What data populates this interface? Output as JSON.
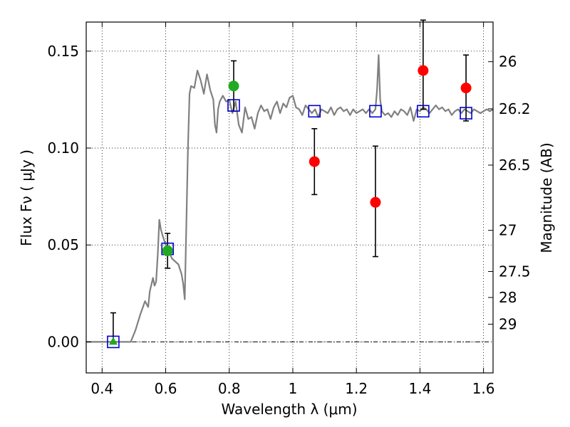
{
  "chart_data": {
    "type": "scatter",
    "xlabel": "Wavelength  λ (μm)",
    "ylabel": "Flux  Fν  ( μJy )",
    "y2label": "Magnitude (AB)",
    "xlim": [
      0.35,
      1.63
    ],
    "ylim": [
      -0.016,
      0.165
    ],
    "x_ticks": [
      0.4,
      0.6,
      0.8,
      1.0,
      1.2,
      1.4,
      1.6
    ],
    "x_tick_labels": [
      "0.4",
      "0.6",
      "0.8",
      "1",
      "1.2",
      "1.4",
      "1.6"
    ],
    "y_ticks": [
      0.0,
      0.05,
      0.1,
      0.15
    ],
    "y_tick_labels": [
      "0.00",
      "0.05",
      "0.10",
      "0.15"
    ],
    "mag_ticks": [
      26,
      26.2,
      26.5,
      27,
      27.5,
      28,
      29
    ],
    "mag_tick_labels": [
      "26",
      "26.2",
      "26.5",
      "27",
      "27.5",
      "28",
      "29"
    ],
    "grid": true,
    "zero_line": true,
    "colors": {
      "model": "#808080",
      "model_photometry": "#0000cc",
      "detection": "#22aa22",
      "high_z": "#ff0000",
      "errorbar": "#000000"
    },
    "model_spectrum": [
      [
        0.35,
        0.0
      ],
      [
        0.49,
        0.0
      ],
      [
        0.505,
        0.006
      ],
      [
        0.52,
        0.014
      ],
      [
        0.535,
        0.021
      ],
      [
        0.545,
        0.018
      ],
      [
        0.55,
        0.026
      ],
      [
        0.56,
        0.033
      ],
      [
        0.565,
        0.029
      ],
      [
        0.57,
        0.031
      ],
      [
        0.575,
        0.045
      ],
      [
        0.58,
        0.063
      ],
      [
        0.585,
        0.058
      ],
      [
        0.59,
        0.055
      ],
      [
        0.6,
        0.05
      ],
      [
        0.62,
        0.043
      ],
      [
        0.64,
        0.04
      ],
      [
        0.65,
        0.035
      ],
      [
        0.655,
        0.03
      ],
      [
        0.66,
        0.022
      ],
      [
        0.665,
        0.06
      ],
      [
        0.67,
        0.1
      ],
      [
        0.675,
        0.128
      ],
      [
        0.68,
        0.132
      ],
      [
        0.69,
        0.131
      ],
      [
        0.7,
        0.14
      ],
      [
        0.71,
        0.135
      ],
      [
        0.72,
        0.128
      ],
      [
        0.73,
        0.138
      ],
      [
        0.74,
        0.13
      ],
      [
        0.75,
        0.125
      ],
      [
        0.755,
        0.112
      ],
      [
        0.76,
        0.108
      ],
      [
        0.765,
        0.12
      ],
      [
        0.77,
        0.124
      ],
      [
        0.78,
        0.127
      ],
      [
        0.79,
        0.124
      ],
      [
        0.8,
        0.125
      ],
      [
        0.81,
        0.118
      ],
      [
        0.82,
        0.124
      ],
      [
        0.83,
        0.112
      ],
      [
        0.84,
        0.108
      ],
      [
        0.85,
        0.121
      ],
      [
        0.86,
        0.115
      ],
      [
        0.87,
        0.116
      ],
      [
        0.88,
        0.11
      ],
      [
        0.89,
        0.118
      ],
      [
        0.9,
        0.122
      ],
      [
        0.91,
        0.119
      ],
      [
        0.92,
        0.12
      ],
      [
        0.93,
        0.115
      ],
      [
        0.94,
        0.121
      ],
      [
        0.95,
        0.124
      ],
      [
        0.96,
        0.118
      ],
      [
        0.97,
        0.123
      ],
      [
        0.98,
        0.121
      ],
      [
        0.99,
        0.126
      ],
      [
        1.0,
        0.127
      ],
      [
        1.01,
        0.121
      ],
      [
        1.02,
        0.12
      ],
      [
        1.03,
        0.117
      ],
      [
        1.04,
        0.122
      ],
      [
        1.05,
        0.12
      ],
      [
        1.06,
        0.118
      ],
      [
        1.07,
        0.12
      ],
      [
        1.08,
        0.116
      ],
      [
        1.09,
        0.12
      ],
      [
        1.1,
        0.119
      ],
      [
        1.11,
        0.118
      ],
      [
        1.12,
        0.121
      ],
      [
        1.13,
        0.117
      ],
      [
        1.14,
        0.12
      ],
      [
        1.15,
        0.121
      ],
      [
        1.16,
        0.119
      ],
      [
        1.17,
        0.12
      ],
      [
        1.18,
        0.117
      ],
      [
        1.19,
        0.12
      ],
      [
        1.2,
        0.118
      ],
      [
        1.21,
        0.119
      ],
      [
        1.22,
        0.12
      ],
      [
        1.23,
        0.118
      ],
      [
        1.24,
        0.12
      ],
      [
        1.25,
        0.118
      ],
      [
        1.26,
        0.12
      ],
      [
        1.265,
        0.13
      ],
      [
        1.27,
        0.148
      ],
      [
        1.275,
        0.125
      ],
      [
        1.28,
        0.119
      ],
      [
        1.29,
        0.117
      ],
      [
        1.3,
        0.118
      ],
      [
        1.31,
        0.116
      ],
      [
        1.32,
        0.119
      ],
      [
        1.33,
        0.117
      ],
      [
        1.34,
        0.12
      ],
      [
        1.35,
        0.119
      ],
      [
        1.36,
        0.117
      ],
      [
        1.37,
        0.121
      ],
      [
        1.38,
        0.114
      ],
      [
        1.39,
        0.12
      ],
      [
        1.4,
        0.119
      ],
      [
        1.41,
        0.121
      ],
      [
        1.42,
        0.12
      ],
      [
        1.43,
        0.118
      ],
      [
        1.44,
        0.12
      ],
      [
        1.45,
        0.122
      ],
      [
        1.46,
        0.12
      ],
      [
        1.47,
        0.121
      ],
      [
        1.48,
        0.119
      ],
      [
        1.49,
        0.12
      ],
      [
        1.5,
        0.117
      ],
      [
        1.51,
        0.119
      ],
      [
        1.52,
        0.12
      ],
      [
        1.53,
        0.118
      ],
      [
        1.54,
        0.12
      ],
      [
        1.55,
        0.119
      ],
      [
        1.56,
        0.118
      ],
      [
        1.57,
        0.12
      ],
      [
        1.58,
        0.119
      ],
      [
        1.59,
        0.118
      ],
      [
        1.6,
        0.119
      ],
      [
        1.61,
        0.12
      ],
      [
        1.62,
        0.119
      ],
      [
        1.63,
        0.12
      ]
    ],
    "model_photometry": [
      {
        "x": 0.435,
        "y": 0.0
      },
      {
        "x": 0.606,
        "y": 0.048
      },
      {
        "x": 0.814,
        "y": 0.122
      },
      {
        "x": 1.068,
        "y": 0.119
      },
      {
        "x": 1.26,
        "y": 0.119
      },
      {
        "x": 1.41,
        "y": 0.119
      },
      {
        "x": 1.545,
        "y": 0.118
      }
    ],
    "observed_detections": [
      {
        "x": 0.435,
        "y": 0.0,
        "err_lo": 0.0,
        "err_hi": 0.015,
        "marker": "triangle"
      },
      {
        "x": 0.606,
        "y": 0.047,
        "err_lo": 0.009,
        "err_hi": 0.009,
        "marker": "circle"
      },
      {
        "x": 0.814,
        "y": 0.132,
        "err_lo": 0.013,
        "err_hi": 0.013,
        "marker": "circle"
      }
    ],
    "observed_high_z": [
      {
        "x": 1.068,
        "y": 0.093,
        "err_lo": 0.017,
        "err_hi": 0.017
      },
      {
        "x": 1.26,
        "y": 0.072,
        "err_lo": 0.028,
        "err_hi": 0.029
      },
      {
        "x": 1.41,
        "y": 0.14,
        "err_lo": 0.02,
        "err_hi": 0.026
      },
      {
        "x": 1.545,
        "y": 0.131,
        "err_lo": 0.017,
        "err_hi": 0.017
      }
    ]
  }
}
